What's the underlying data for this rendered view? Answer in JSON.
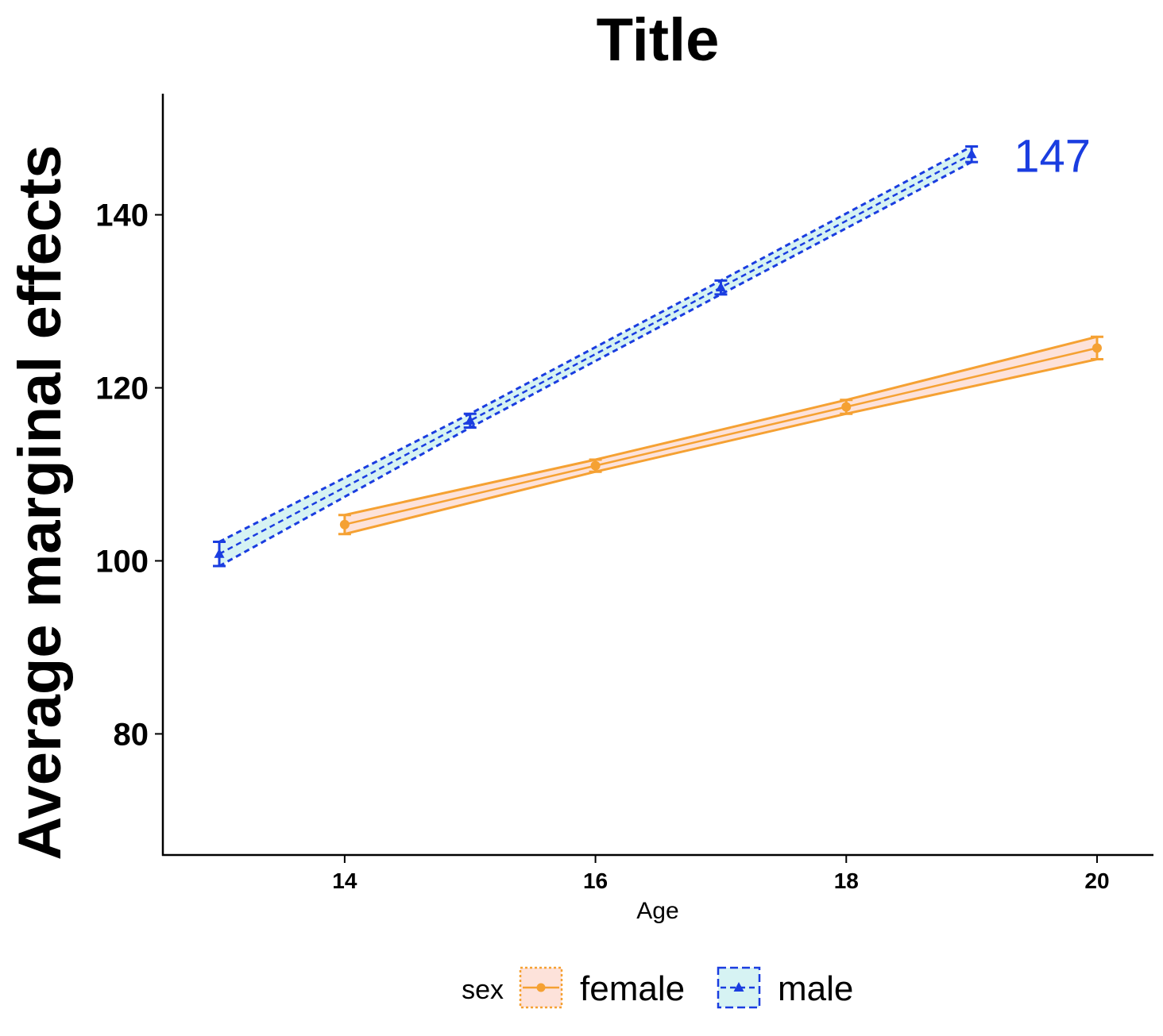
{
  "chart_data": {
    "type": "line",
    "title": "Title",
    "xlabel": "Age",
    "ylabel": "Average marginal effects",
    "xlim": [
      12.55,
      20.45
    ],
    "ylim": [
      66,
      154
    ],
    "x_ticks": [
      14,
      16,
      18,
      20
    ],
    "y_ticks": [
      80,
      100,
      120,
      140
    ],
    "grid": false,
    "legend": {
      "position": "bottom",
      "title": "sex"
    },
    "series": [
      {
        "name": "female",
        "color": "#F5A133",
        "fill": "#FDE2DA",
        "marker": "circle",
        "line_style": "solid",
        "x": [
          14,
          16,
          18,
          20
        ],
        "y": [
          104.2,
          111.0,
          117.8,
          124.6
        ],
        "lower": [
          103.1,
          110.3,
          117.0,
          123.3
        ],
        "upper": [
          105.3,
          111.7,
          118.6,
          125.9
        ]
      },
      {
        "name": "male",
        "color": "#1A3DE0",
        "fill": "#D6F3F3",
        "marker": "triangle",
        "line_style": "dashed",
        "x": [
          13,
          15,
          17,
          19
        ],
        "y": [
          100.8,
          116.2,
          131.6,
          147.0
        ],
        "lower": [
          99.4,
          115.4,
          130.8,
          146.1
        ],
        "upper": [
          102.2,
          117.0,
          132.4,
          147.9
        ]
      }
    ],
    "annotations": [
      {
        "text": "147",
        "x": 19.4,
        "y": 147,
        "color": "#1A3DE0"
      }
    ]
  }
}
